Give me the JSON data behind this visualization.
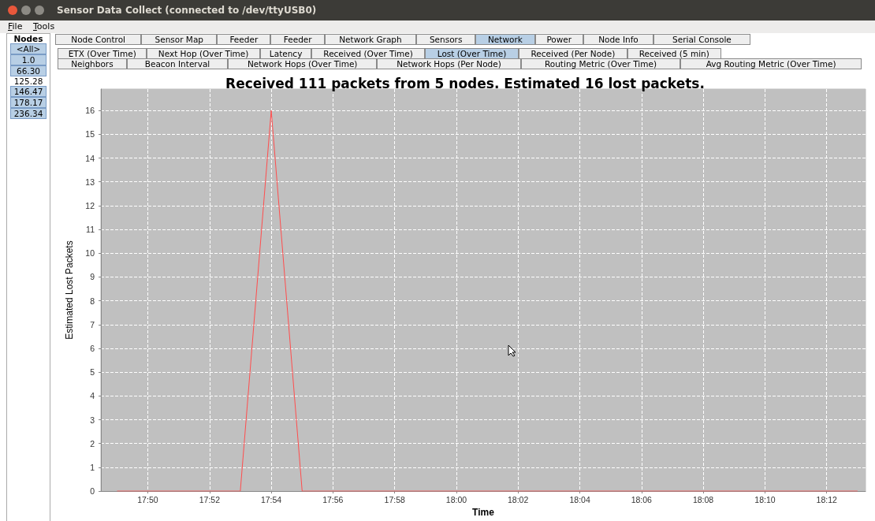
{
  "chart_data": {
    "type": "line",
    "title": "Received 111 packets from 5 nodes. Estimated 16 lost packets.",
    "xlabel": "Time",
    "ylabel": "Estimated Lost Packets",
    "annotations": [
      "Sensor Data Collect (connected to /dev/ttyUSB0)",
      "File",
      "Tools",
      "Nodes",
      "<All>",
      "1.0",
      "66.30",
      "125.28",
      "146.47",
      "178.17",
      "236.34",
      "Node Control",
      "Sensor Map",
      "Feeder",
      "Feeder",
      "Network Graph",
      "Sensors",
      "Network",
      "Power",
      "Node Info",
      "Serial Console",
      "ETX (Over Time)",
      "Next Hop (Over Time)",
      "Latency",
      "Received (Over Time)",
      "Lost (Over Time)",
      "Received (Per Node)",
      "Received (5 min)",
      "Neighbors",
      "Beacon Interval",
      "Network Hops (Over Time)",
      "Network Hops (Per Node)",
      "Routing Metric (Over Time)",
      "Avg Routing Metric (Over Time)"
    ],
    "x": [
      17.8167,
      17.8833,
      17.9,
      17.9167,
      18.2167
    ],
    "series": [
      {
        "color": "#ff4d4d",
        "values": [
          0,
          0,
          16,
          0,
          0
        ]
      }
    ],
    "xlim": [
      17.808,
      18.221
    ],
    "xticks": [
      {
        "value": 17.8333,
        "label": "17:50"
      },
      {
        "value": 17.8667,
        "label": "17:52"
      },
      {
        "value": 17.9,
        "label": "17:54"
      },
      {
        "value": 17.9333,
        "label": "17:56"
      },
      {
        "value": 17.9667,
        "label": "17:58"
      },
      {
        "value": 18.0,
        "label": "18:00"
      },
      {
        "value": 18.0333,
        "label": "18:02"
      },
      {
        "value": 18.0667,
        "label": "18:04"
      },
      {
        "value": 18.1,
        "label": "18:06"
      },
      {
        "value": 18.1333,
        "label": "18:08"
      },
      {
        "value": 18.1667,
        "label": "18:10"
      },
      {
        "value": 18.2,
        "label": "18:12"
      }
    ],
    "ylim": [
      0,
      16.9
    ],
    "yticks": [
      0,
      1,
      2,
      3,
      4,
      5,
      6,
      7,
      8,
      9,
      10,
      11,
      12,
      13,
      14,
      15,
      16
    ],
    "grid": true,
    "marker": "none",
    "line_style": "solid"
  }
}
